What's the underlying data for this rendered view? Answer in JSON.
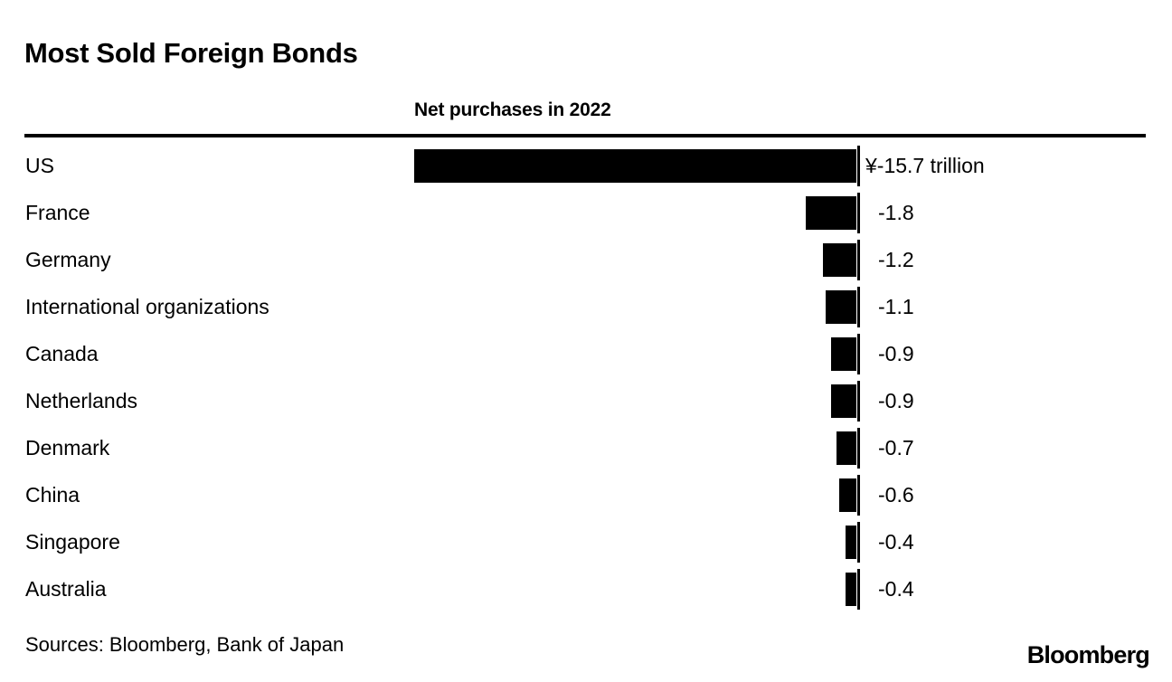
{
  "header": {
    "title": "Most Sold Foreign Bonds",
    "subtitle": "Net purchases in 2022"
  },
  "footer": {
    "sources": "Sources: Bloomberg, Bank of Japan",
    "brand": "Bloomberg"
  },
  "colors": {
    "bar": "#000000",
    "background": "#ffffff",
    "text": "#000000"
  },
  "chart_data": {
    "type": "bar",
    "orientation": "horizontal",
    "title": "Most Sold Foreign Bonds",
    "subtitle": "Net purchases in 2022",
    "unit": "yen trillion",
    "categories": [
      "US",
      "France",
      "Germany",
      "International organizations",
      "Canada",
      "Netherlands",
      "Denmark",
      "China",
      "Singapore",
      "Australia"
    ],
    "values": [
      -15.7,
      -1.8,
      -1.2,
      -1.1,
      -0.9,
      -0.9,
      -0.7,
      -0.6,
      -0.4,
      -0.4
    ],
    "value_labels": [
      "¥-15.7 trillion",
      "-1.8",
      "-1.2",
      "-1.1",
      "-0.9",
      "-0.9",
      "-0.7",
      "-0.6",
      "-0.4",
      "-0.4"
    ],
    "xlim": [
      -15.7,
      0
    ],
    "grid": false,
    "legend": false,
    "bar_color": "#000000"
  }
}
